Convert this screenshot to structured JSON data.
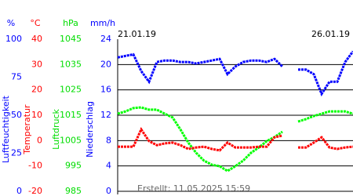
{
  "chart_data": {
    "type": "line",
    "x_labels": [
      "21.01.19",
      "26.01.19"
    ],
    "footer": "Erstellt: 11.05.2025 15:59",
    "axes": [
      {
        "unit": "%",
        "label": "Luftfeuchtigkeit",
        "color": "#0000ff",
        "ylim": [
          0,
          100
        ],
        "yticks": [
          0,
          25,
          50,
          75,
          100
        ]
      },
      {
        "unit": "°C",
        "label": "Temperatur",
        "color": "#ff0000",
        "ylim": [
          -20,
          40
        ],
        "yticks": [
          -20,
          -10,
          0,
          10,
          20,
          30,
          40
        ]
      },
      {
        "unit": "hPa",
        "label": "Luftdruck",
        "color": "#00dd00",
        "ylim": [
          985,
          1045
        ],
        "yticks": [
          985,
          995,
          1005,
          1015,
          1025,
          1035,
          1045
        ]
      },
      {
        "unit": "mm/h",
        "label": "Niederschlag",
        "color": "#0000ff",
        "ylim": [
          0,
          24
        ],
        "yticks": [
          0,
          4,
          8,
          12,
          16,
          20,
          24
        ]
      }
    ],
    "grid_axis": 3,
    "series": [
      {
        "axis": 2,
        "color": "#00ff00",
        "values": [
          1015.6,
          1016.5,
          1017.8,
          1018.1,
          1017.2,
          1017.2,
          1015.6,
          1014.1,
          1009.4,
          1004.2,
          1000.2,
          997.1,
          995.5,
          994.9,
          993,
          994.9,
          997.1,
          1000.2,
          1002.3,
          1004.8,
          1006.4,
          1008.5,
          null,
          1012.5,
          1013.5,
          1014.7,
          1015.6,
          1016.5,
          1016.5,
          1016.5,
          1015.6
        ]
      },
      {
        "axis": 1,
        "color": "#ff0000",
        "values": [
          -2.4,
          -2.4,
          -2.4,
          4.4,
          -0.2,
          -1.8,
          -1.1,
          -0.8,
          -1.8,
          -3.3,
          -2.7,
          -2.4,
          -3.3,
          -3.9,
          -0.8,
          -2.7,
          -2.7,
          -2.7,
          -2.4,
          -2.4,
          1.3,
          2,
          null,
          -2.7,
          -2.7,
          -0.8,
          1.3,
          -2.7,
          -3.3,
          -2.7,
          -2.4
        ]
      },
      {
        "axis": 0,
        "color": "#0000ff",
        "values": [
          88,
          89,
          90,
          79,
          72,
          85,
          86,
          86,
          85,
          85,
          84,
          85,
          86,
          87,
          77,
          82,
          85,
          86,
          86,
          85,
          87,
          82,
          null,
          80,
          80,
          77,
          64,
          72,
          72,
          85,
          92
        ]
      }
    ]
  }
}
